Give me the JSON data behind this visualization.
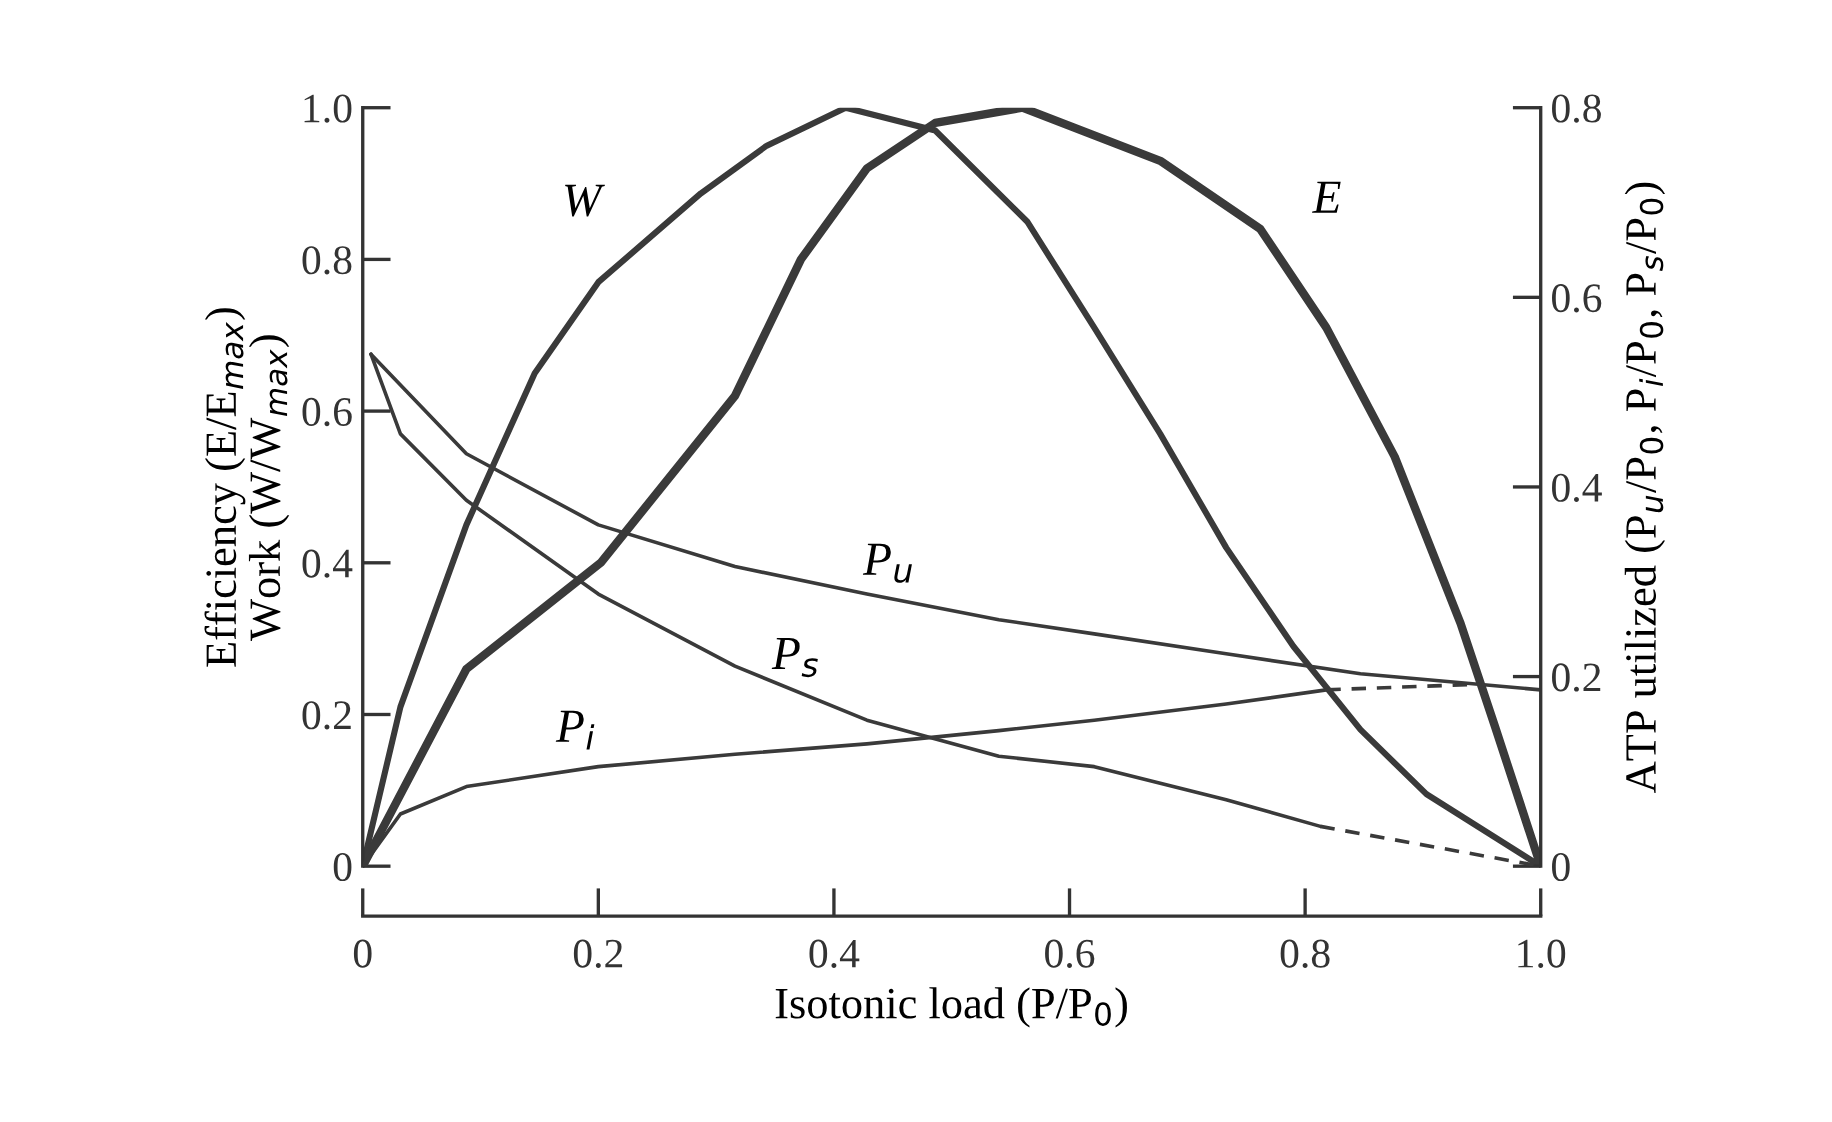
{
  "chart_data": {
    "type": "line",
    "xlabel": "Isotonic load (P/P$_{0}$)",
    "ylabel": "Efficiency (E/E$_{max}$)\nWork (W/W$_{max}$)",
    "y2label": "ATP utilized (P$_{u}$/P$_{0}$, P$_{i}$/P$_{0}$, P$_{s}$/P$_{0}$)",
    "xlim": [
      0,
      1.0
    ],
    "xticks": [
      0,
      0.2,
      0.4,
      0.6,
      0.8,
      {
        "value": 1.0,
        "label": "1.0"
      }
    ],
    "ylim": [
      0,
      1.0
    ],
    "yticks": [
      0,
      0.2,
      0.4,
      0.6,
      0.8,
      {
        "value": 1.0,
        "label": "1.0"
      }
    ],
    "y2lim": [
      0,
      0.8
    ],
    "y2ticks": [
      0,
      0.2,
      0.4,
      0.6,
      0.8
    ],
    "grid": false,
    "legend": false,
    "marker": "none",
    "line_style": "solid",
    "series": [
      {
        "name": "W",
        "color": "#3a3a3a",
        "x": [
          0,
          0.032,
          0.088,
          0.146,
          0.2,
          0.287,
          0.343,
          0.41,
          0.486,
          0.564,
          0.621,
          0.677,
          0.733,
          0.79,
          0.847,
          0.903,
          1.0
        ],
        "values": [
          0,
          0.21,
          0.45,
          0.65,
          0.77,
          0.887,
          0.95,
          1.0,
          0.97,
          0.85,
          0.71,
          0.57,
          0.42,
          0.29,
          0.18,
          0.095,
          0
        ]
      },
      {
        "name": "E",
        "color": "#3a3a3a",
        "x": [
          0,
          0.088,
          0.202,
          0.316,
          0.372,
          0.428,
          0.486,
          0.56,
          0.677,
          0.762,
          0.818,
          0.876,
          0.932,
          0.961,
          1.0
        ],
        "values": [
          0,
          0.26,
          0.4,
          0.62,
          0.8,
          0.92,
          0.98,
          1.0,
          0.93,
          0.84,
          0.71,
          0.54,
          0.32,
          0.185,
          0
        ]
      },
      {
        "name": "P$_{u}$",
        "color": "#3a3a3a",
        "axis": "y2",
        "x": [
          0.007,
          0.088,
          0.2,
          0.316,
          0.428,
          0.54,
          0.621,
          0.733,
          0.847,
          1.0
        ],
        "values": [
          0.54,
          0.435,
          0.36,
          0.316,
          0.287,
          0.26,
          0.245,
          0.224,
          0.203,
          0.186
        ]
      },
      {
        "name": "P$_{s}$",
        "color": "#3a3a3a",
        "axis": "y2",
        "x": [
          0.007,
          0.032,
          0.088,
          0.2,
          0.316,
          0.428,
          0.54,
          0.621,
          0.733,
          0.813
        ],
        "values": [
          0.54,
          0.456,
          0.386,
          0.287,
          0.211,
          0.154,
          0.116,
          0.105,
          0.07,
          0.042
        ]
      },
      {
        "name": "P$_{i}$",
        "color": "#3a3a3a",
        "axis": "y2",
        "x": [
          0,
          0.032,
          0.088,
          0.2,
          0.316,
          0.428,
          0.54,
          0.621,
          0.733,
          0.818
        ],
        "values": [
          0,
          0.055,
          0.084,
          0.105,
          0.118,
          0.129,
          0.143,
          0.154,
          0.171,
          0.186
        ]
      },
      {
        "color": "#3a3a3a",
        "axis": "y2",
        "line_style": "dashed",
        "x": [
          0.813,
          1.0
        ],
        "values": [
          0.042,
          0
        ]
      },
      {
        "color": "#3a3a3a",
        "axis": "y2",
        "line_style": "dashed",
        "x": [
          0.818,
          0.95
        ],
        "values": [
          0.186,
          0.192
        ]
      }
    ]
  }
}
